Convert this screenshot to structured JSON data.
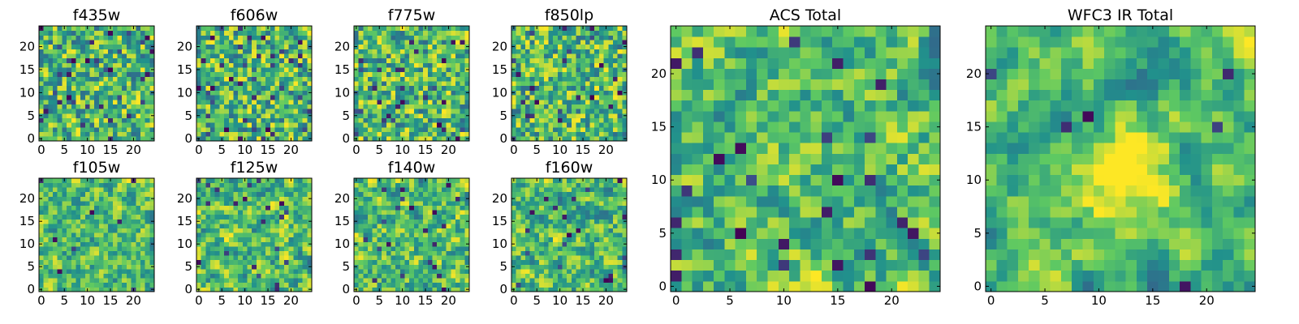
{
  "figure": {
    "colormap": "viridis",
    "colormap_stops": [
      "#440154",
      "#3b528b",
      "#21918c",
      "#5ec962",
      "#fde725"
    ]
  },
  "chart_data": [
    {
      "type": "heatmap",
      "title": "f435w",
      "grid_size": 25,
      "x_ticks": [
        0,
        5,
        10,
        15,
        20
      ],
      "y_ticks": [
        0,
        5,
        10,
        15,
        20
      ],
      "xlim": [
        0,
        25
      ],
      "ylim": [
        0,
        25
      ],
      "grid": false,
      "seed": 11,
      "smoothing": 0,
      "dark_fraction": 0.06
    },
    {
      "type": "heatmap",
      "title": "f606w",
      "grid_size": 25,
      "x_ticks": [
        0,
        5,
        10,
        15,
        20
      ],
      "y_ticks": [
        0,
        5,
        10,
        15,
        20
      ],
      "xlim": [
        0,
        25
      ],
      "ylim": [
        0,
        25
      ],
      "grid": false,
      "seed": 23,
      "smoothing": 0,
      "dark_fraction": 0.06
    },
    {
      "type": "heatmap",
      "title": "f775w",
      "grid_size": 25,
      "x_ticks": [
        0,
        5,
        10,
        15,
        20
      ],
      "y_ticks": [
        0,
        5,
        10,
        15,
        20
      ],
      "xlim": [
        0,
        25
      ],
      "ylim": [
        0,
        25
      ],
      "grid": false,
      "seed": 37,
      "smoothing": 0,
      "dark_fraction": 0.04
    },
    {
      "type": "heatmap",
      "title": "f850lp",
      "grid_size": 25,
      "x_ticks": [
        0,
        5,
        10,
        15,
        20
      ],
      "y_ticks": [
        0,
        5,
        10,
        15,
        20
      ],
      "xlim": [
        0,
        25
      ],
      "ylim": [
        0,
        25
      ],
      "grid": false,
      "seed": 41,
      "smoothing": 0,
      "dark_fraction": 0.05
    },
    {
      "type": "heatmap",
      "title": "ACS Total",
      "grid_size": 25,
      "x_ticks": [
        0,
        5,
        10,
        15,
        20
      ],
      "y_ticks": [
        0,
        5,
        10,
        15,
        20
      ],
      "xlim": [
        0,
        25
      ],
      "ylim": [
        0,
        25
      ],
      "grid": false,
      "seed": 53,
      "smoothing": 1,
      "dark_fraction": 0.03
    },
    {
      "type": "heatmap",
      "title": "f105w",
      "grid_size": 25,
      "x_ticks": [
        0,
        5,
        10,
        15,
        20
      ],
      "y_ticks": [
        0,
        5,
        10,
        15,
        20
      ],
      "xlim": [
        0,
        25
      ],
      "ylim": [
        0,
        25
      ],
      "grid": false,
      "seed": 61,
      "smoothing": 1,
      "dark_fraction": 0.02
    },
    {
      "type": "heatmap",
      "title": "f125w",
      "grid_size": 25,
      "x_ticks": [
        0,
        5,
        10,
        15,
        20
      ],
      "y_ticks": [
        0,
        5,
        10,
        15,
        20
      ],
      "xlim": [
        0,
        25
      ],
      "ylim": [
        0,
        25
      ],
      "grid": false,
      "seed": 73,
      "smoothing": 1,
      "dark_fraction": 0.04
    },
    {
      "type": "heatmap",
      "title": "f140w",
      "grid_size": 25,
      "x_ticks": [
        0,
        5,
        10,
        15,
        20
      ],
      "y_ticks": [
        0,
        5,
        10,
        15,
        20
      ],
      "xlim": [
        0,
        25
      ],
      "ylim": [
        0,
        25
      ],
      "grid": false,
      "seed": 89,
      "smoothing": 1,
      "dark_fraction": 0.03
    },
    {
      "type": "heatmap",
      "title": "f160w",
      "grid_size": 25,
      "x_ticks": [
        0,
        5,
        10,
        15,
        20
      ],
      "y_ticks": [
        0,
        5,
        10,
        15,
        20
      ],
      "xlim": [
        0,
        25
      ],
      "ylim": [
        0,
        25
      ],
      "grid": false,
      "seed": 97,
      "smoothing": 1,
      "dark_fraction": 0.03
    },
    {
      "type": "heatmap",
      "title": "WFC3 IR Total",
      "grid_size": 25,
      "x_ticks": [
        0,
        5,
        10,
        15,
        20
      ],
      "y_ticks": [
        0,
        5,
        10,
        15,
        20
      ],
      "xlim": [
        0,
        25
      ],
      "ylim": [
        0,
        25
      ],
      "grid": false,
      "seed": 101,
      "smoothing": 2,
      "dark_fraction": 0.02,
      "bright_center": true
    }
  ]
}
